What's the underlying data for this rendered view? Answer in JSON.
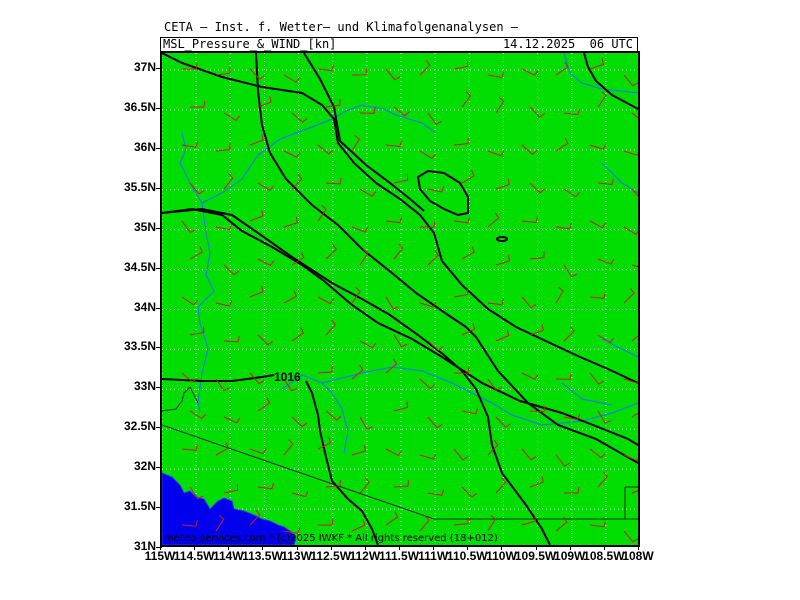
{
  "header": {
    "title": "CETA – Inst. f. Wetter– und Klimafolgenanalysen –",
    "product": "MSL_Pressure_&_WIND_[kn]",
    "valid_time": "14.12.2025  06 UTC"
  },
  "footer": {
    "copyright": "meteo-services.com * (c)2025 IWKF * All rights reserved (18+012)"
  },
  "map": {
    "land_color": "#00dd00",
    "water_color": "#0000ee",
    "isobar_label": "1016",
    "latitude_labels": [
      "37N",
      "36.5N",
      "36N",
      "35.5N",
      "35N",
      "34.5N",
      "34N",
      "33.5N",
      "33N",
      "32.5N",
      "32N",
      "31.5N",
      "31N"
    ],
    "longitude_labels": [
      "115W",
      "114.5W",
      "114W",
      "113.5W",
      "113W",
      "112.5W",
      "112W",
      "111.5W",
      "111W",
      "110.5W",
      "110W",
      "109.5W",
      "109W",
      "108.5W",
      "108W"
    ]
  }
}
